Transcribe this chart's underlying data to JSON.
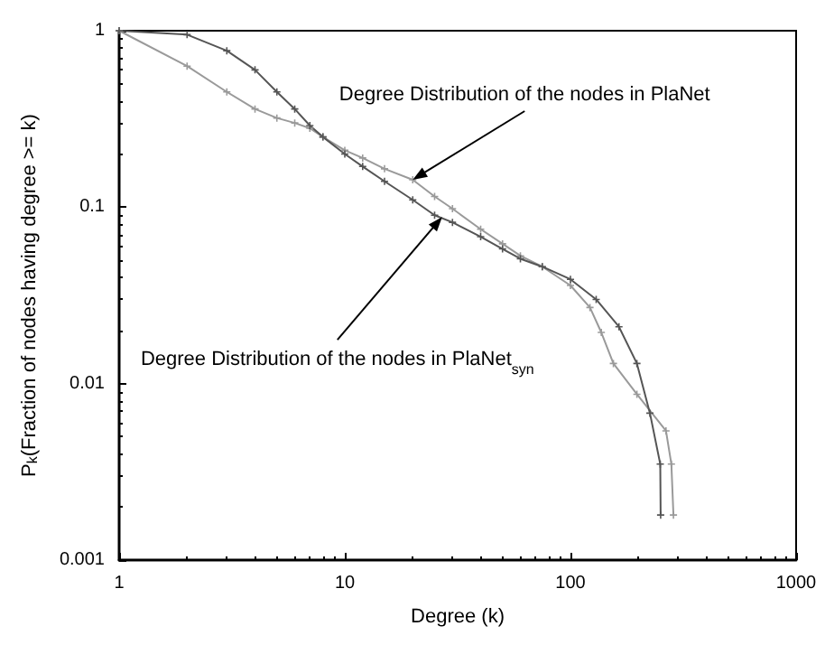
{
  "chart_data": {
    "type": "line",
    "xlabel": "Degree (k)",
    "ylabel": "P$_{k}$(Fraction of nodes having degree >= k)",
    "log": "xy",
    "xlim": [
      1,
      1000
    ],
    "xticks": [
      1,
      10,
      100,
      1000
    ],
    "ylim": [
      0.001,
      1
    ],
    "yticks": [
      0.001,
      0.01,
      0.1,
      1
    ],
    "grid": false,
    "marker": "cross",
    "line_style": "solid",
    "series": [
      {
        "color": "#9a9a9a",
        "x": [
          1,
          2,
          3,
          4,
          5,
          6,
          7,
          8,
          10,
          12,
          15,
          20,
          25,
          30,
          40,
          50,
          60,
          75,
          100,
          122,
          137,
          155,
          197,
          265,
          280,
          286
        ],
        "values": [
          1.0,
          0.63,
          0.45,
          0.36,
          0.32,
          0.3,
          0.28,
          0.25,
          0.21,
          0.19,
          0.165,
          0.143,
          0.115,
          0.098,
          0.075,
          0.062,
          0.053,
          0.046,
          0.036,
          0.027,
          0.0195,
          0.013,
          0.0087,
          0.0054,
          0.0035,
          0.0018
        ]
      },
      {
        "color": "#555555",
        "x": [
          1,
          2,
          3,
          4,
          5,
          6,
          7,
          8,
          10,
          12,
          15,
          20,
          25,
          30,
          40,
          50,
          60,
          75,
          100,
          130,
          164,
          197,
          225,
          250,
          251
        ],
        "values": [
          1.0,
          0.95,
          0.77,
          0.6,
          0.45,
          0.36,
          0.29,
          0.25,
          0.2,
          0.17,
          0.14,
          0.11,
          0.09,
          0.082,
          0.068,
          0.058,
          0.051,
          0.046,
          0.039,
          0.03,
          0.021,
          0.013,
          0.0068,
          0.0035,
          0.0018
        ]
      }
    ],
    "annotations": [
      {
        "text": "Degree Distribution of the nodes in PlaNet",
        "x": 20,
        "y": 0.143
      },
      {
        "text": "Degree Distribution of the nodes in PlaNet$_{syn}$",
        "x": 27,
        "y": 0.088
      }
    ]
  }
}
